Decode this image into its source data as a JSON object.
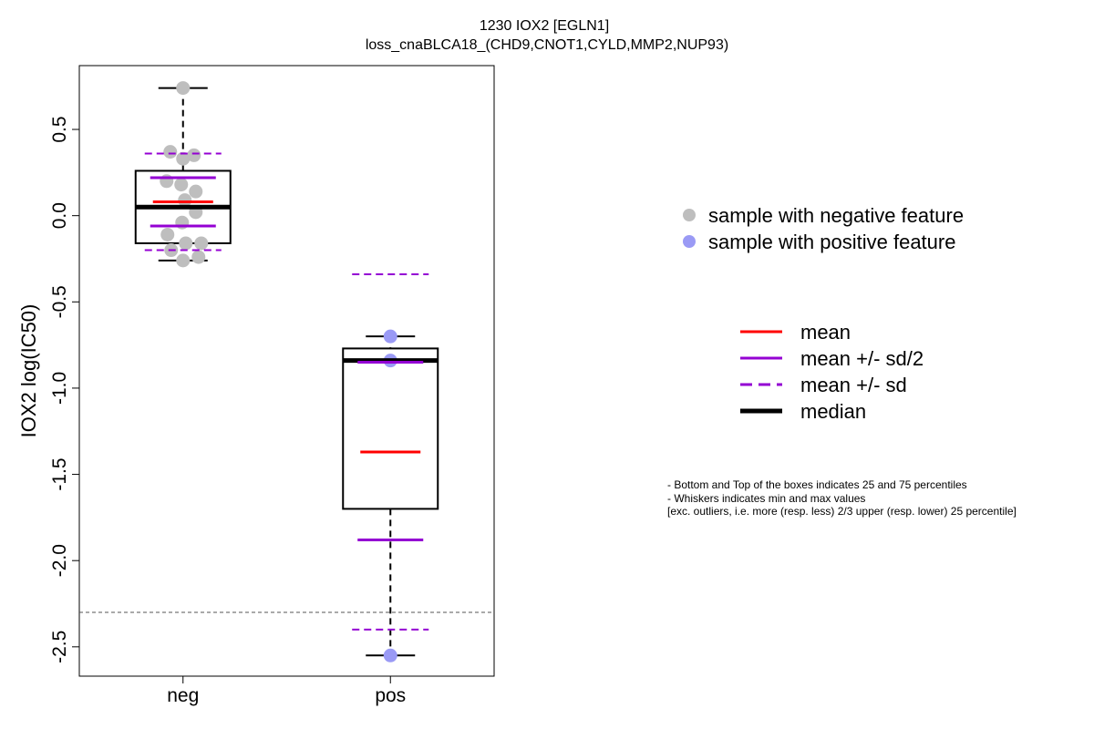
{
  "chart_data": {
    "type": "box",
    "title": "1230 IOX2 [EGLN1]",
    "subtitle": "loss_cnaBLCA18_(CHD9,CNOT1,CYLD,MMP2,NUP93)",
    "xlabel": "",
    "ylabel": "IOX2 log(IC50)",
    "categories": [
      "neg",
      "pos"
    ],
    "ylim": [
      -2.67,
      0.87
    ],
    "yticks": [
      0.5,
      0.0,
      -0.5,
      -1.0,
      -1.5,
      -2.0,
      -2.5
    ],
    "ytick_labels": [
      "0.5",
      "0.0",
      "-0.5",
      "-1.0",
      "-1.5",
      "-2.0",
      "-2.5"
    ],
    "reference_line": -2.3,
    "groups": [
      {
        "name": "neg",
        "min": -0.26,
        "q1": -0.16,
        "median": 0.05,
        "q3": 0.26,
        "max": 0.74,
        "mean": 0.08,
        "mean_minus_half_sd": -0.06,
        "mean_plus_half_sd": 0.22,
        "mean_minus_sd": -0.2,
        "mean_plus_sd": 0.36,
        "points": [
          0.74,
          0.37,
          0.35,
          0.33,
          0.2,
          0.18,
          0.14,
          0.09,
          0.02,
          -0.04,
          -0.11,
          -0.16,
          -0.16,
          -0.2,
          -0.24,
          -0.26
        ],
        "color": "#bebebe"
      },
      {
        "name": "pos",
        "min": -2.55,
        "q1": -1.7,
        "median": -0.84,
        "q3": -0.77,
        "max": -0.7,
        "mean": -1.37,
        "mean_minus_half_sd": -1.88,
        "mean_plus_half_sd": -0.85,
        "mean_minus_sd": -2.4,
        "mean_plus_sd": -0.34,
        "points": [
          -0.7,
          -0.84,
          -2.55
        ],
        "color": "#9a9af5"
      }
    ],
    "legend_points": [
      {
        "label": "sample with negative feature",
        "color": "#bebebe"
      },
      {
        "label": "sample with positive feature",
        "color": "#9a9af5"
      }
    ],
    "legend_lines": [
      {
        "label": "mean",
        "color": "#ff0000",
        "style": "solid"
      },
      {
        "label": "mean +/- sd/2",
        "color": "#9400d3",
        "style": "solid"
      },
      {
        "label": "mean +/- sd",
        "color": "#9400d3",
        "style": "dashed"
      },
      {
        "label": "median",
        "color": "#000000",
        "style": "thick"
      }
    ],
    "notes": [
      "- Bottom and Top of the boxes indicates 25 and 75 percentiles",
      "- Whiskers indicates min and max values",
      "[exc. outliers, i.e. more (resp. less) 2/3 upper (resp. lower) 25 percentile]"
    ]
  }
}
